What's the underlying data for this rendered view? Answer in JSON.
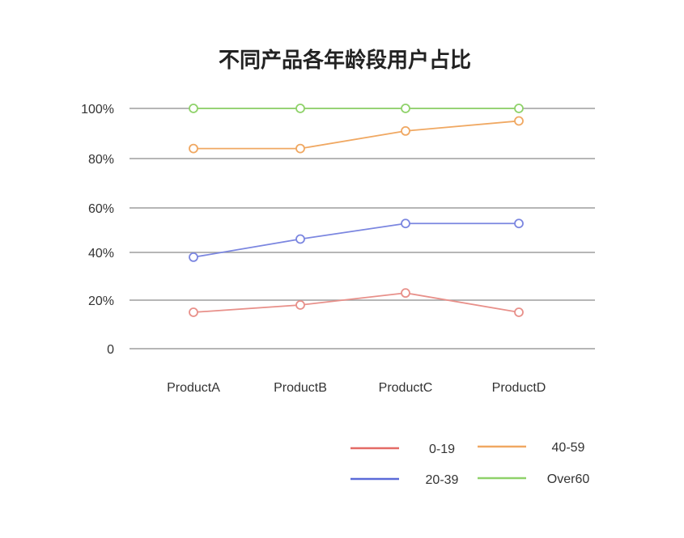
{
  "chart_data": {
    "type": "line",
    "title": "不同产品各年龄段用户占比",
    "categories": [
      "ProductA",
      "ProductB",
      "ProductC",
      "ProductD"
    ],
    "y_tick_labels": [
      "0",
      "20%",
      "40%",
      "60%",
      "80%",
      "100%"
    ],
    "ylim": [
      0,
      100
    ],
    "grid": true,
    "legend_position": "bottom-right",
    "series": [
      {
        "name": "0-19",
        "values": [
          15,
          18,
          23,
          15
        ],
        "color": "#e8908a",
        "legend_color": "#e46b66"
      },
      {
        "name": "20-39",
        "values": [
          38,
          46,
          53,
          53
        ],
        "color": "#7b86e0",
        "legend_color": "#5b6ad8"
      },
      {
        "name": "40-59",
        "values": [
          84,
          84,
          91,
          95
        ],
        "color": "#f0a862",
        "legend_color": "#f0a862"
      },
      {
        "name": "Over60",
        "values": [
          100,
          100,
          100,
          100
        ],
        "color": "#8fd26a",
        "legend_color": "#8fd26a"
      }
    ]
  }
}
